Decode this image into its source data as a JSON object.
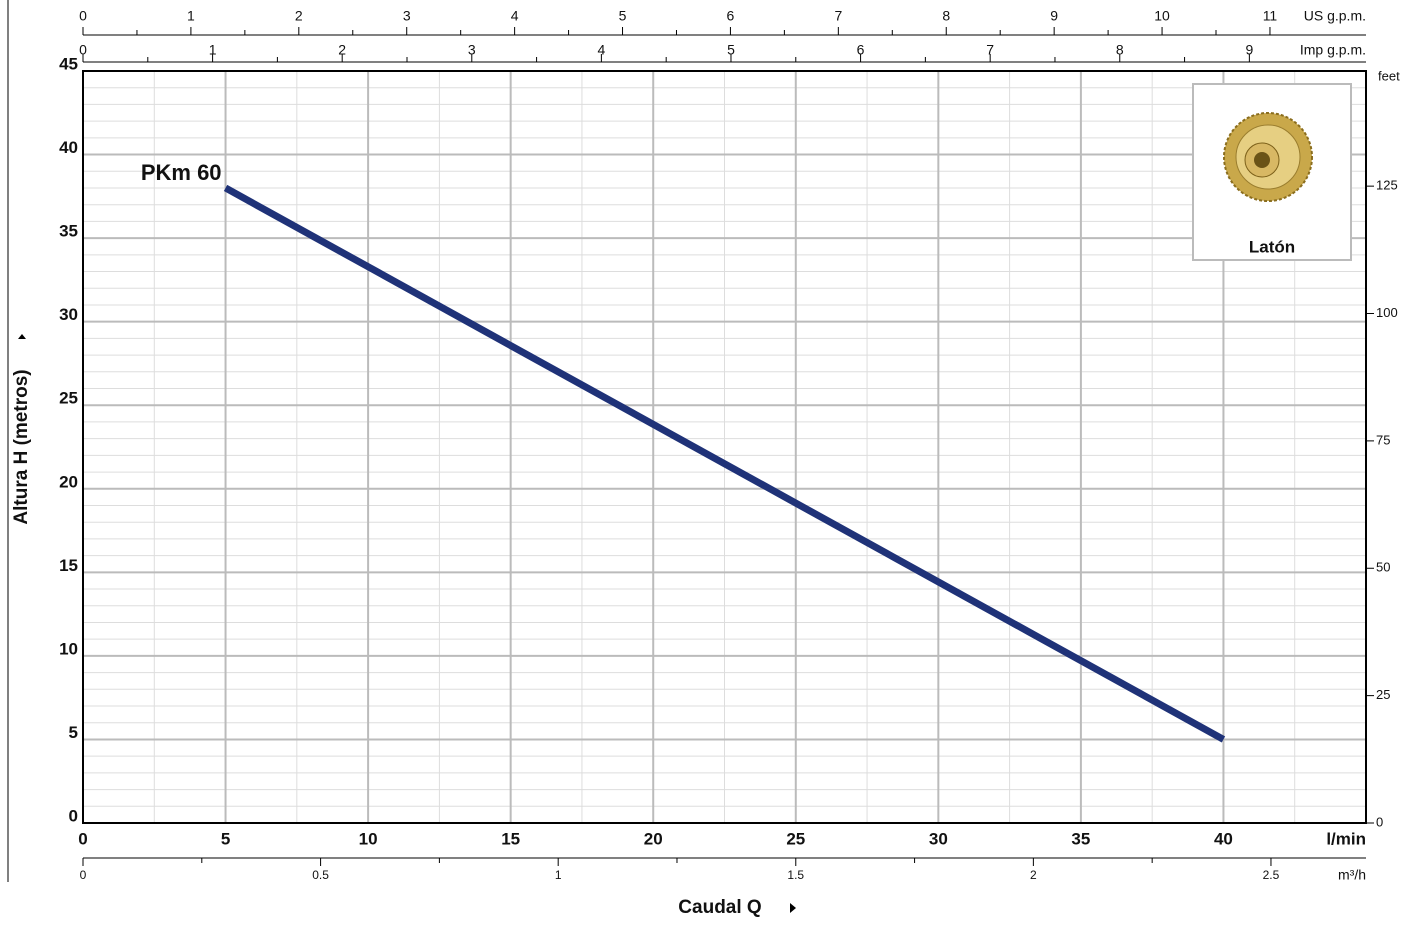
{
  "chart_data": {
    "type": "line",
    "xlabel": "Caudal Q",
    "ylabel": "Altura H (metros)",
    "xlim": [
      0,
      45
    ],
    "xticks": [
      0,
      5,
      10,
      15,
      20,
      25,
      30,
      35,
      40
    ],
    "xunit": "l/min",
    "ylim": [
      0,
      45
    ],
    "yticks": [
      0,
      5,
      10,
      15,
      20,
      25,
      30,
      35,
      40,
      45
    ],
    "grid": true,
    "x": [
      5,
      40
    ],
    "series": [
      {
        "name": "PKm 60",
        "color": "#1f3278",
        "values": [
          38,
          5
        ]
      }
    ],
    "extra_axes": [
      {
        "position": "top",
        "label": "US g.p.m.",
        "lim": [
          0,
          11.89
        ],
        "ticks": [
          0,
          1,
          2,
          3,
          4,
          5,
          6,
          7,
          8,
          9,
          10,
          11
        ]
      },
      {
        "position": "top2",
        "label": "Imp g.p.m.",
        "lim": [
          0,
          9.9
        ],
        "ticks": [
          0,
          1,
          2,
          3,
          4,
          5,
          6,
          7,
          8,
          9
        ]
      },
      {
        "position": "bottom",
        "label": "m³/h",
        "lim": [
          0,
          2.7
        ],
        "ticks": [
          0,
          0.5,
          1,
          1.5,
          2,
          2.5
        ]
      },
      {
        "position": "right",
        "label": "feet",
        "lim": [
          0,
          147.6
        ],
        "ticks": [
          0,
          25,
          50,
          75,
          100,
          125
        ]
      }
    ],
    "inset_label": "Latón"
  }
}
